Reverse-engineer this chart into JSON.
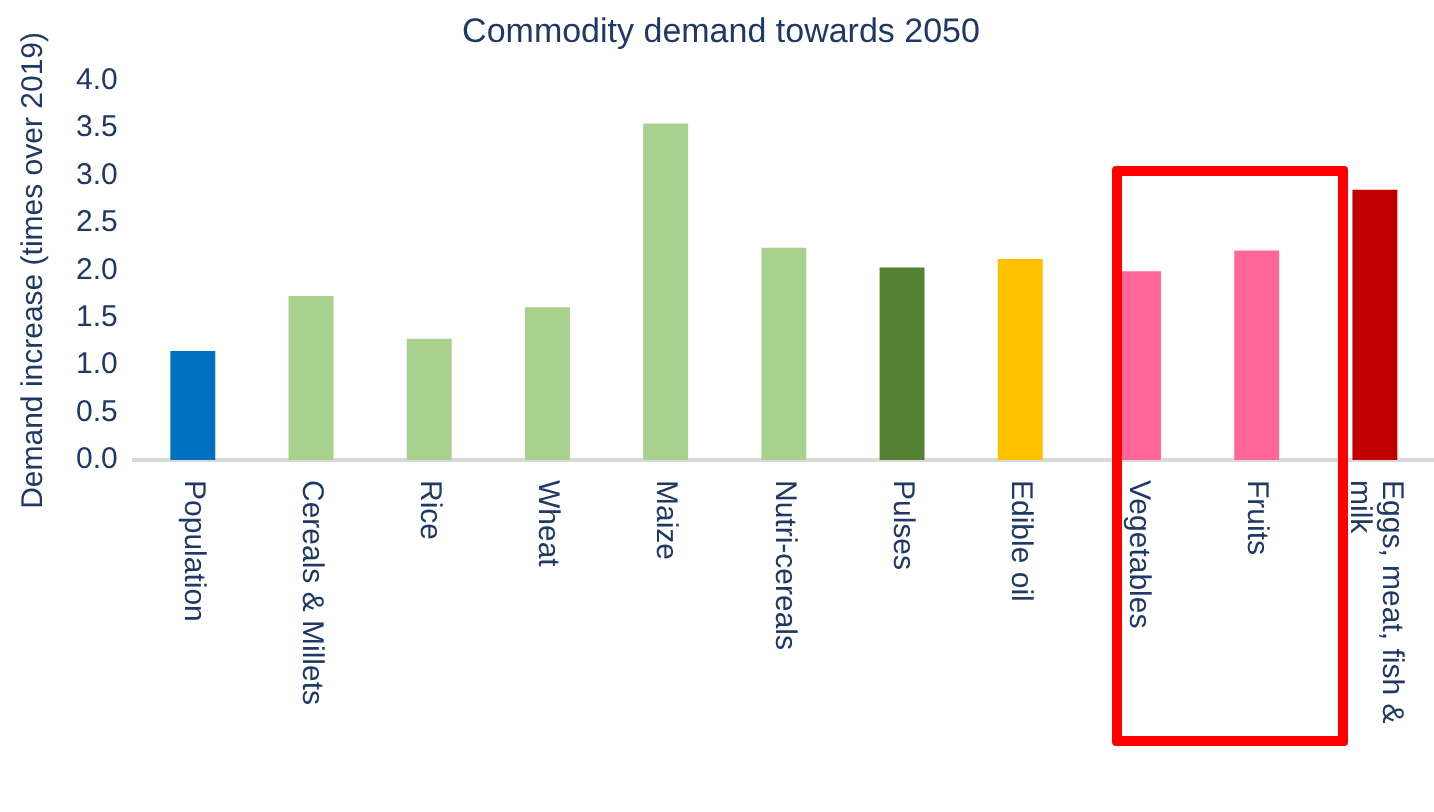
{
  "chart_data": {
    "type": "bar",
    "title": "Commodity demand towards 2050",
    "ylabel": "Demand increase (times over 2019)",
    "categories": [
      "Population",
      "Cereals & Millets",
      "Rice",
      "Wheat",
      "Maize",
      "Nutri-cereals",
      "Pulses",
      "Edible oil",
      "Vegetables",
      "Fruits",
      "Eggs, meat, fish & milk"
    ],
    "values": [
      1.15,
      1.73,
      1.28,
      1.61,
      3.55,
      2.24,
      2.03,
      2.12,
      1.99,
      2.21,
      2.85
    ],
    "colors": [
      "#0070c0",
      "#a9d18e",
      "#a9d18e",
      "#a9d18e",
      "#a9d18e",
      "#a9d18e",
      "#548235",
      "#ffc000",
      "#ff6699",
      "#ff6699",
      "#c00000"
    ],
    "ylim": [
      0,
      4
    ],
    "yticks": [
      {
        "value": 0,
        "label": "0.0"
      },
      {
        "value": 0.5,
        "label": "0.5"
      },
      {
        "value": 1,
        "label": "1.0"
      },
      {
        "value": 1.5,
        "label": "1.5"
      },
      {
        "value": 2,
        "label": "2.0"
      },
      {
        "value": 2.5,
        "label": "2.5"
      },
      {
        "value": 3,
        "label": "3.0"
      },
      {
        "value": 3.5,
        "label": "3.5"
      },
      {
        "value": 4,
        "label": "4.0"
      }
    ],
    "grid": false
  }
}
